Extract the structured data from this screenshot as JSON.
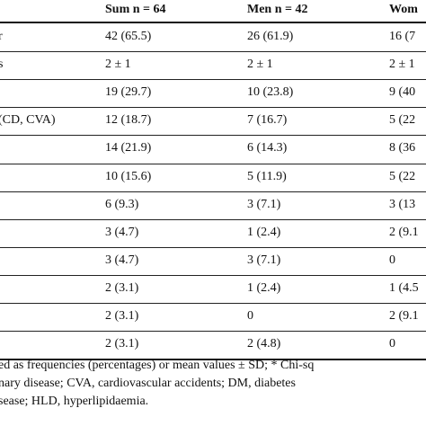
{
  "table": {
    "headers": [
      "",
      "Sum n = 64",
      "Men n = 42",
      "Wom"
    ],
    "rows": [
      {
        "label": "r",
        "sum": "42 (65.5)",
        "men": "26 (61.9)",
        "women": "16 (7"
      },
      {
        "label": "s",
        "sum": "2 ± 1",
        "men": "2 ± 1",
        "women": "2 ± 1"
      },
      {
        "label": "",
        "sum": "19 (29.7)",
        "men": "10 (23.8)",
        "women": "9 (40"
      },
      {
        "label": "(CD, CVA)",
        "sum": "12 (18.7)",
        "men": "7 (16.7)",
        "women": "5 (22"
      },
      {
        "label": "",
        "sum": "14 (21.9)",
        "men": "6 (14.3)",
        "women": "8 (36"
      },
      {
        "label": "",
        "sum": "10 (15.6)",
        "men": "5 (11.9)",
        "women": "5 (22"
      },
      {
        "label": "",
        "sum": "6 (9.3)",
        "men": "3 (7.1)",
        "women": "3 (13"
      },
      {
        "label": "",
        "sum": "3 (4.7)",
        "men": "1 (2.4)",
        "women": "2 (9.1"
      },
      {
        "label": "",
        "sum": "3 (4.7)",
        "men": "3 (7.1)",
        "women": "0"
      },
      {
        "label": "",
        "sum": "2 (3.1)",
        "men": "1 (2.4)",
        "women": "1 (4.5"
      },
      {
        "label": "",
        "sum": "2 (3.1)",
        "men": "0",
        "women": "2 (9.1"
      },
      {
        "label": "",
        "sum": "2 (3.1)",
        "men": "2 (4.8)",
        "women": "0"
      }
    ]
  },
  "footnote": {
    "line1": "ed as frequencies (percentages) or mean values ± SD; * Chi-sq",
    "line2": "nary disease; CVA, cardiovascular accidents; DM, diabetes",
    "line3": "sease; HLD, hyperlipidaemia."
  }
}
